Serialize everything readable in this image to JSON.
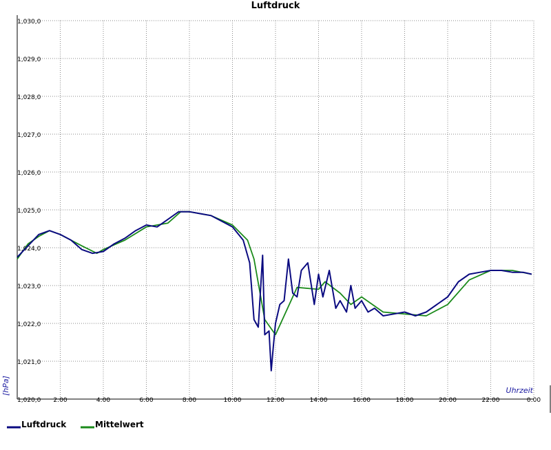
{
  "chart_data": {
    "type": "line",
    "title": "Luftdruck",
    "y_label": "[hPa]",
    "x_label": "Uhrzeit",
    "grid": true,
    "xlim": [
      0,
      24
    ],
    "xticks": [
      {
        "value": 2,
        "label": "2:00"
      },
      {
        "value": 4,
        "label": "4:00"
      },
      {
        "value": 6,
        "label": "6:00"
      },
      {
        "value": 8,
        "label": "8:00"
      },
      {
        "value": 10,
        "label": "10:00"
      },
      {
        "value": 12,
        "label": "12:00"
      },
      {
        "value": 14,
        "label": "14:00"
      },
      {
        "value": 16,
        "label": "16:00"
      },
      {
        "value": 18,
        "label": "18:00"
      },
      {
        "value": 20,
        "label": "20:00"
      },
      {
        "value": 22,
        "label": "22:00"
      },
      {
        "value": 24,
        "label": "0:00"
      }
    ],
    "ylim": [
      1020,
      1030
    ],
    "yticks": [
      {
        "value": 1020,
        "label": "1,020,0"
      },
      {
        "value": 1021,
        "label": "1,021,0"
      },
      {
        "value": 1022,
        "label": "1,022,0"
      },
      {
        "value": 1023,
        "label": "1,023,0"
      },
      {
        "value": 1024,
        "label": "1,024,0"
      },
      {
        "value": 1025,
        "label": "1,025,0"
      },
      {
        "value": 1026,
        "label": "1,026,0"
      },
      {
        "value": 1027,
        "label": "1,027,0"
      },
      {
        "value": 1028,
        "label": "1,028,0"
      },
      {
        "value": 1029,
        "label": "1,029,0"
      },
      {
        "value": 1030,
        "label": "1,030,0"
      }
    ],
    "series": [
      {
        "name": "Luftdruck",
        "color": "#0a0a80",
        "x": [
          0,
          0.5,
          1,
          1.5,
          2,
          2.5,
          3,
          3.5,
          4,
          4.5,
          5,
          5.5,
          6,
          6.5,
          7,
          7.5,
          8,
          8.5,
          9,
          9.5,
          10,
          10.5,
          10.8,
          11,
          11.2,
          11.4,
          11.5,
          11.7,
          11.8,
          11.9,
          12,
          12.2,
          12.4,
          12.6,
          12.8,
          13,
          13.2,
          13.5,
          13.8,
          14,
          14.2,
          14.5,
          14.8,
          15,
          15.3,
          15.5,
          15.7,
          16,
          16.3,
          16.6,
          17,
          17.5,
          18,
          18.5,
          19,
          19.5,
          20,
          20.5,
          21,
          21.5,
          22,
          22.5,
          23,
          23.5,
          23.9
        ],
        "values": [
          1023.75,
          1024.05,
          1024.35,
          1024.45,
          1024.35,
          1024.2,
          1023.95,
          1023.85,
          1023.9,
          1024.1,
          1024.25,
          1024.45,
          1024.6,
          1024.55,
          1024.75,
          1024.95,
          1024.95,
          1024.9,
          1024.85,
          1024.7,
          1024.55,
          1024.2,
          1023.6,
          1022.1,
          1021.9,
          1023.8,
          1021.7,
          1021.8,
          1020.75,
          1021.4,
          1022.0,
          1022.5,
          1022.6,
          1023.7,
          1022.8,
          1022.7,
          1023.4,
          1023.6,
          1022.5,
          1023.3,
          1022.7,
          1023.4,
          1022.4,
          1022.6,
          1022.3,
          1023.0,
          1022.4,
          1022.6,
          1022.3,
          1022.4,
          1022.2,
          1022.25,
          1022.3,
          1022.2,
          1022.3,
          1022.5,
          1022.7,
          1023.1,
          1023.3,
          1023.35,
          1023.4,
          1023.4,
          1023.35,
          1023.35,
          1023.3
        ]
      },
      {
        "name": "Mittelwert",
        "color": "#1a8a1a",
        "x": [
          0,
          0.5,
          1,
          1.5,
          2,
          3,
          3.7,
          4,
          5,
          6,
          7,
          7.6,
          8,
          9,
          10,
          10.7,
          11,
          11.5,
          12,
          13,
          14,
          14.3,
          15,
          15.5,
          16,
          17,
          18,
          19,
          20,
          21,
          22,
          23,
          23.9
        ],
        "values": [
          1023.7,
          1024.1,
          1024.3,
          1024.45,
          1024.35,
          1024.05,
          1023.85,
          1023.95,
          1024.2,
          1024.55,
          1024.65,
          1024.95,
          1024.95,
          1024.85,
          1024.6,
          1024.2,
          1023.7,
          1022.1,
          1021.7,
          1022.95,
          1022.9,
          1023.1,
          1022.8,
          1022.5,
          1022.7,
          1022.3,
          1022.25,
          1022.2,
          1022.5,
          1023.15,
          1023.4,
          1023.4,
          1023.3
        ]
      }
    ]
  }
}
